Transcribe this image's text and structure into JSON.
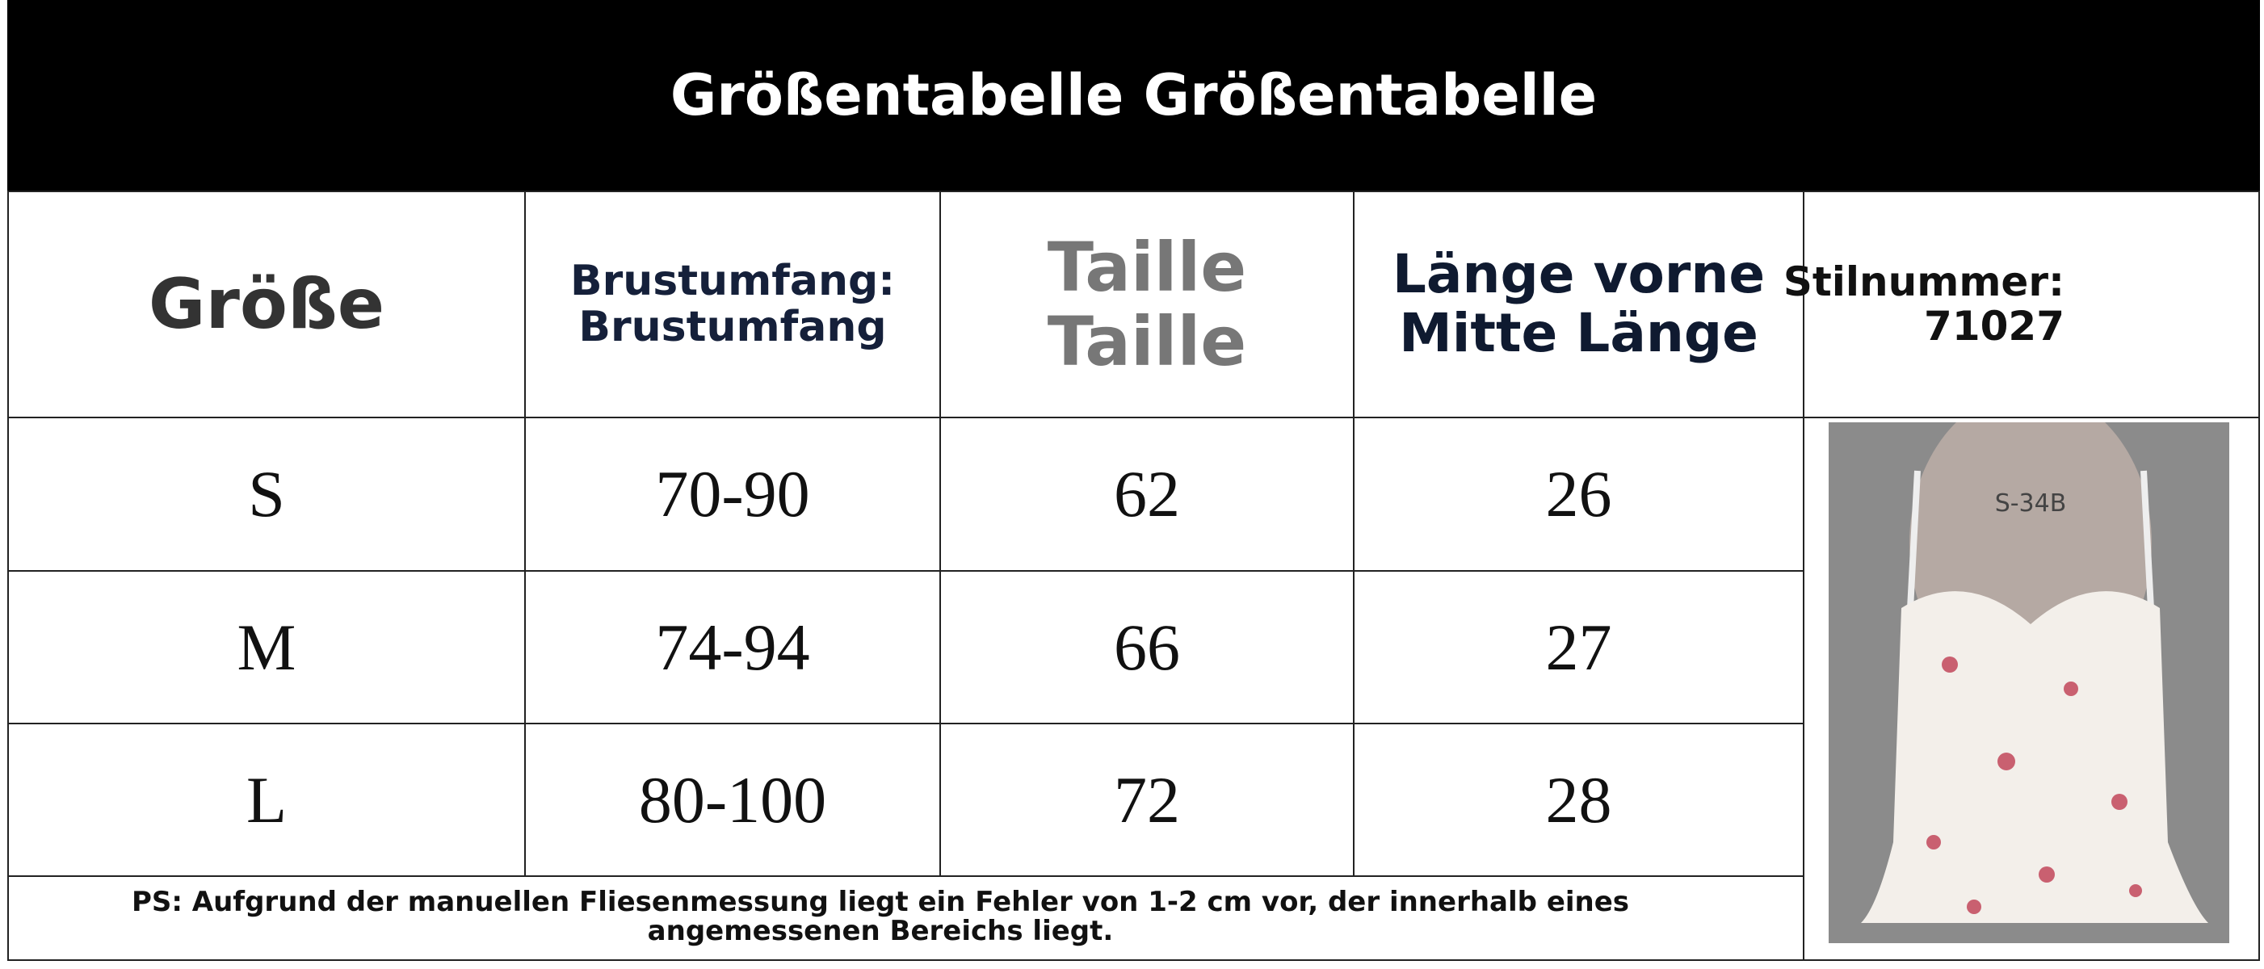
{
  "header": {
    "title": "Größentabelle Größentabelle"
  },
  "table": {
    "columns": [
      [
        "Größe"
      ],
      [
        "Brustumfang:",
        "Brustumfang"
      ],
      [
        "Taille",
        "Taille"
      ],
      [
        "Länge vorne",
        "Mitte Länge"
      ]
    ],
    "style_number": [
      "Stilnummer:",
      "71027"
    ],
    "rows": [
      [
        "S",
        "70-90",
        "62",
        "26"
      ],
      [
        "M",
        "74-94",
        "66",
        "27"
      ],
      [
        "L",
        "80-100",
        "72",
        "28"
      ]
    ]
  },
  "image": {
    "label": "S-34B"
  },
  "note": "PS: Aufgrund der manuellen Fliesenmessung liegt ein Fehler von 1-2 cm vor, der innerhalb eines angemessenen Bereichs liegt."
}
